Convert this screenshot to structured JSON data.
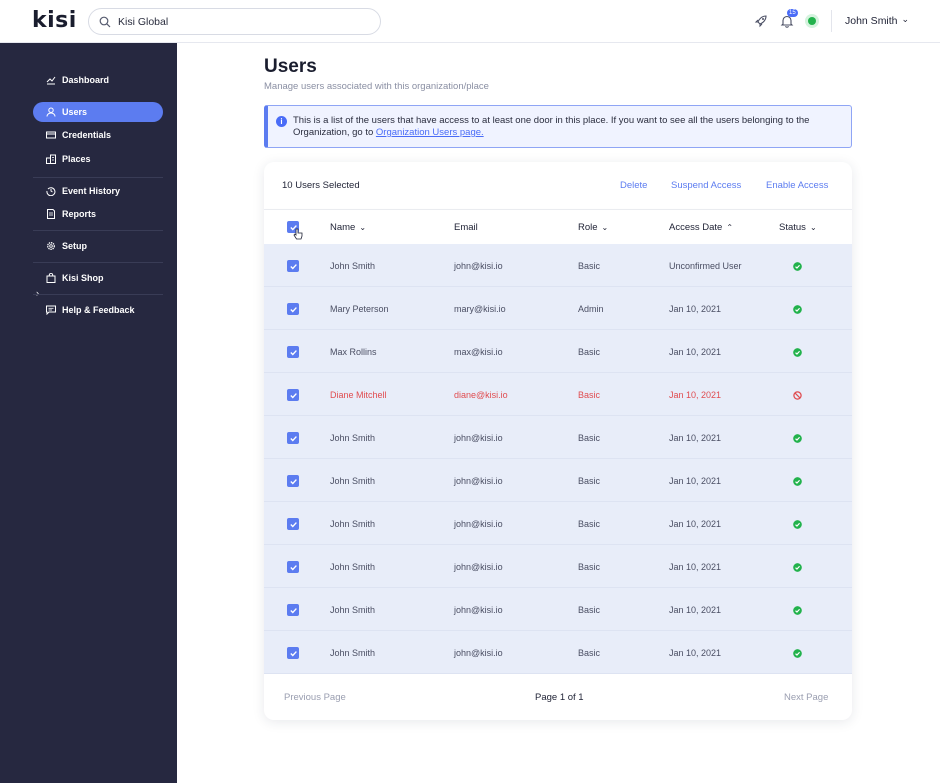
{
  "app": {
    "logo": "kisi"
  },
  "search": {
    "value": "Kisi Global"
  },
  "topbar": {
    "notifications_count": "15",
    "user_name": "John Smith",
    "user_chevron": "⌄",
    "status_color": "#22b24c"
  },
  "sidebar": {
    "items": [
      {
        "label": "Dashboard",
        "icon": "dashboard-icon"
      },
      {
        "label": "Users",
        "icon": "user-icon",
        "active": true
      },
      {
        "label": "Credentials",
        "icon": "credential-card-icon"
      },
      {
        "label": "Places",
        "icon": "building-icon"
      },
      {
        "label": "Event History",
        "icon": "history-icon"
      },
      {
        "label": "Reports",
        "icon": "report-icon"
      },
      {
        "label": "Setup",
        "icon": "gear-icon"
      },
      {
        "label": "Kisi Shop",
        "icon": "shop-bag-icon"
      },
      {
        "label": "Help & Feedback",
        "icon": "feedback-icon"
      }
    ]
  },
  "page": {
    "title": "Users",
    "subtitle": "Manage users associated with this organization/place",
    "info_text": "This is a list of the users that have access to at least one door in this place. If you want to see all the users belonging to the Organization, go to ",
    "info_link": "Organization Users page."
  },
  "table": {
    "selected_label": "10 Users Selected",
    "actions": {
      "delete": "Delete",
      "suspend": "Suspend Access",
      "enable": "Enable Access"
    },
    "headers": {
      "name": "Name",
      "email": "Email",
      "role": "Role",
      "access_date": "Access Date",
      "status": "Status"
    },
    "sort_icons": {
      "down": "⌄",
      "up": "⌃"
    },
    "rows": [
      {
        "name": "John Smith",
        "email": "john@kisi.io",
        "role": "Basic",
        "access_date": "Unconfirmed User",
        "status": "active"
      },
      {
        "name": "Mary Peterson",
        "email": "mary@kisi.io",
        "role": "Admin",
        "access_date": "Jan 10, 2021",
        "status": "active"
      },
      {
        "name": "Max Rollins",
        "email": "max@kisi.io",
        "role": "Basic",
        "access_date": "Jan 10, 2021",
        "status": "active"
      },
      {
        "name": "Diane Mitchell",
        "email": "diane@kisi.io",
        "role": "Basic",
        "access_date": "Jan 10, 2021",
        "status": "blocked"
      },
      {
        "name": "John Smith",
        "email": "john@kisi.io",
        "role": "Basic",
        "access_date": "Jan 10, 2021",
        "status": "active"
      },
      {
        "name": "John Smith",
        "email": "john@kisi.io",
        "role": "Basic",
        "access_date": "Jan 10, 2021",
        "status": "active"
      },
      {
        "name": "John Smith",
        "email": "john@kisi.io",
        "role": "Basic",
        "access_date": "Jan 10, 2021",
        "status": "active"
      },
      {
        "name": "John Smith",
        "email": "john@kisi.io",
        "role": "Basic",
        "access_date": "Jan 10, 2021",
        "status": "active"
      },
      {
        "name": "John Smith",
        "email": "john@kisi.io",
        "role": "Basic",
        "access_date": "Jan 10, 2021",
        "status": "active"
      },
      {
        "name": "John Smith",
        "email": "john@kisi.io",
        "role": "Basic",
        "access_date": "Jan 10, 2021",
        "status": "active"
      }
    ],
    "pagination": {
      "previous": "Previous Page",
      "current": "Page 1 of 1",
      "next": "Next Page"
    }
  },
  "colors": {
    "accent": "#5c7cf0",
    "sidebar_bg": "#262840",
    "active_status": "#22b24c",
    "blocked_status": "#e04c50"
  }
}
